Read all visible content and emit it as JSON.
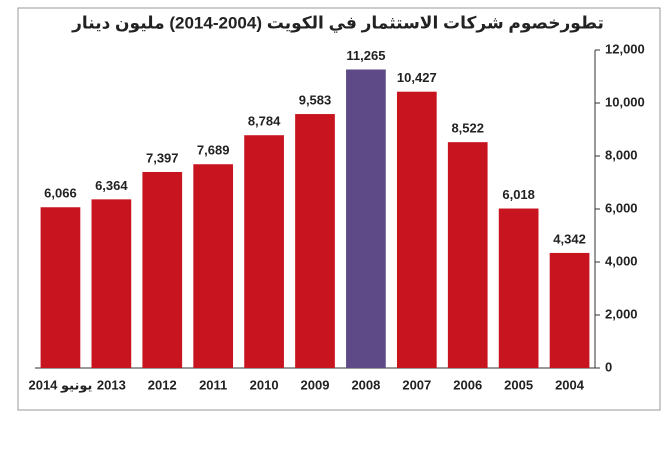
{
  "chart_data": {
    "type": "bar",
    "title": "تطورخصوم شركات الاستثمار في الكويت (2004-2014) مليون دينار",
    "categories": [
      "2014 يونيو",
      "2013",
      "2012",
      "2011",
      "2010",
      "2009",
      "2008",
      "2007",
      "2006",
      "2005",
      "2004"
    ],
    "values": [
      6066,
      6364,
      7397,
      7689,
      8784,
      9583,
      11265,
      10427,
      8522,
      6018,
      4342
    ],
    "value_labels": [
      "6,066",
      "6,364",
      "7,397",
      "7,689",
      "8,784",
      "9,583",
      "11,265",
      "10,427",
      "8,522",
      "6,018",
      "4,342"
    ],
    "colors": [
      "#c8141e",
      "#c8141e",
      "#c8141e",
      "#c8141e",
      "#c8141e",
      "#c8141e",
      "#5e4a86",
      "#c8141e",
      "#c8141e",
      "#c8141e",
      "#c8141e"
    ],
    "ylim": [
      0,
      12000
    ],
    "yticks": [
      0,
      {
        "value": 2000,
        "label": "2,000"
      },
      {
        "value": 4000,
        "label": "4,000"
      },
      {
        "value": 6000,
        "label": "6,000"
      },
      {
        "value": 8000,
        "label": "8,000"
      },
      {
        "value": 10000,
        "label": "10,000"
      },
      {
        "value": 12000,
        "label": "12,000"
      }
    ],
    "y_axis_side": "right"
  }
}
